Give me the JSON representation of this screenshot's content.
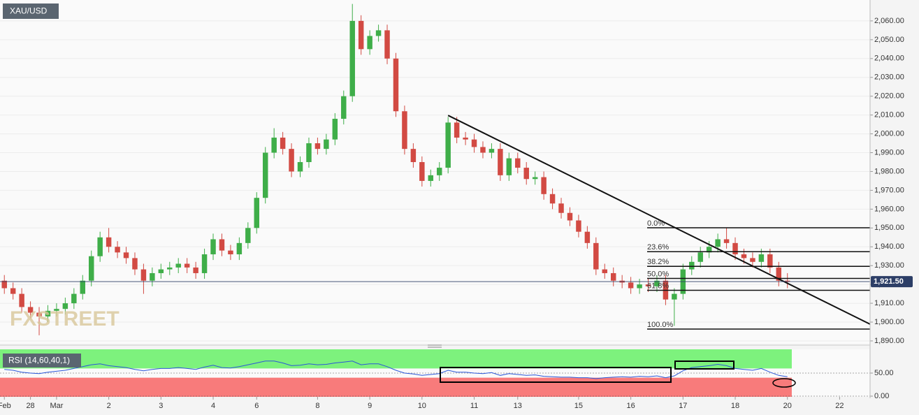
{
  "chart_data": [
    {
      "type": "candlestick",
      "title": "XAU/USD",
      "watermark": "FXSTREET",
      "up_color": "#3fae49",
      "down_color": "#d24a43",
      "open": [
        1922,
        1918,
        1915,
        1908,
        1905,
        1903,
        1906,
        1907,
        1910,
        1915,
        1922,
        1935,
        1945,
        1940,
        1937,
        1934,
        1928,
        1922,
        1926,
        1928,
        1929,
        1931,
        1929,
        1926,
        1936,
        1944,
        1938,
        1936,
        1942,
        1950,
        1966,
        1990,
        1998,
        1992,
        1980,
        1985,
        1995,
        1992,
        1997,
        2008,
        2020,
        2060,
        2045,
        2052,
        2055,
        2040,
        2012,
        1992,
        1985,
        1975,
        1978,
        1982,
        2006,
        1998,
        1997,
        1993,
        1990,
        1992,
        1978,
        1987,
        1982,
        1976,
        1977,
        1968,
        1963,
        1958,
        1954,
        1948,
        1942,
        1928,
        1926,
        1922,
        1921,
        1918,
        1920,
        1919,
        1922,
        1912,
        1915,
        1928,
        1932,
        1937,
        1940,
        1944,
        1942,
        1936,
        1934,
        1932,
        1936,
        1929,
        1922,
        null,
        null,
        null,
        null,
        null,
        null,
        null,
        null,
        null
      ],
      "high": [
        1925,
        1921,
        1918,
        1911,
        1908,
        1909,
        1910,
        1913,
        1918,
        1925,
        1938,
        1948,
        1950,
        1943,
        1940,
        1937,
        1931,
        1929,
        1931,
        1932,
        1934,
        1934,
        1932,
        1939,
        1947,
        1947,
        1941,
        1945,
        1953,
        1969,
        1993,
        2003,
        2001,
        1995,
        1988,
        1998,
        1998,
        2000,
        2011,
        2023,
        2069,
        2063,
        2055,
        2058,
        2058,
        2043,
        2015,
        1995,
        1988,
        1981,
        1985,
        2009,
        2009,
        2001,
        2000,
        1996,
        1995,
        1995,
        1990,
        1990,
        1985,
        1980,
        1980,
        1971,
        1966,
        1961,
        1957,
        1951,
        1945,
        1931,
        1929,
        1925,
        1924,
        1923,
        1923,
        1925,
        1925,
        1918,
        1931,
        1935,
        1940,
        1943,
        1947,
        1950,
        1945,
        1939,
        1937,
        1939,
        1939,
        1932,
        1926,
        null,
        null,
        null,
        null,
        null,
        null,
        null,
        null,
        null
      ],
      "low": [
        1915,
        1912,
        1905,
        1902,
        1893,
        1900,
        1903,
        1904,
        1907,
        1912,
        1919,
        1932,
        1937,
        1934,
        1931,
        1925,
        1915,
        1919,
        1923,
        1925,
        1926,
        1926,
        1923,
        1923,
        1933,
        1935,
        1933,
        1933,
        1939,
        1947,
        1963,
        1987,
        1989,
        1977,
        1977,
        1982,
        1989,
        1989,
        1994,
        2005,
        2017,
        2042,
        2042,
        2049,
        2037,
        2009,
        1989,
        1982,
        1972,
        1972,
        1975,
        1979,
        1995,
        1994,
        1990,
        1987,
        1987,
        1975,
        1975,
        1979,
        1973,
        1973,
        1965,
        1960,
        1955,
        1951,
        1945,
        1939,
        1925,
        1923,
        1919,
        1918,
        1915,
        1915,
        1916,
        1916,
        1909,
        1898,
        1912,
        1925,
        1929,
        1934,
        1937,
        1939,
        1933,
        1931,
        1929,
        1929,
        1926,
        1919,
        1918,
        null,
        null,
        null,
        null,
        null,
        null,
        null,
        null,
        null
      ],
      "close": [
        1918,
        1915,
        1908,
        1905,
        1903,
        1906,
        1907,
        1910,
        1915,
        1922,
        1935,
        1945,
        1940,
        1937,
        1934,
        1928,
        1922,
        1926,
        1928,
        1929,
        1931,
        1929,
        1926,
        1936,
        1944,
        1938,
        1936,
        1942,
        1950,
        1966,
        1990,
        1998,
        1992,
        1980,
        1985,
        1995,
        1992,
        1997,
        2008,
        2020,
        2060,
        2045,
        2052,
        2055,
        2040,
        2012,
        1992,
        1985,
        1975,
        1978,
        1982,
        2006,
        1998,
        1997,
        1993,
        1990,
        1992,
        1978,
        1987,
        1982,
        1976,
        1977,
        1968,
        1963,
        1958,
        1954,
        1948,
        1942,
        1928,
        1926,
        1922,
        1921,
        1918,
        1920,
        1919,
        1922,
        1912,
        1915,
        1928,
        1932,
        1937,
        1940,
        1944,
        1942,
        1936,
        1934,
        1932,
        1936,
        1929,
        1922,
        1921.5,
        null,
        null,
        null,
        null,
        null,
        null,
        null,
        null,
        null
      ],
      "ylim": [
        1888.5,
        2071.1
      ],
      "yticks": [
        {
          "value": 2060,
          "label": "2,060.00"
        },
        {
          "value": 2050,
          "label": "2,050.00"
        },
        {
          "value": 2040,
          "label": "2,040.00"
        },
        {
          "value": 2030,
          "label": "2,030.00"
        },
        {
          "value": 2020,
          "label": "2,020.00"
        },
        {
          "value": 2010,
          "label": "2,010.00"
        },
        {
          "value": 2000,
          "label": "2,000.00"
        },
        {
          "value": 1990,
          "label": "1,990.00"
        },
        {
          "value": 1980,
          "label": "1,980.00"
        },
        {
          "value": 1970,
          "label": "1,970.00"
        },
        {
          "value": 1960,
          "label": "1,960.00"
        },
        {
          "value": 1950,
          "label": "1,950.00"
        },
        {
          "value": 1940,
          "label": "1,940.00"
        },
        {
          "value": 1930,
          "label": "1,930.00"
        },
        {
          "value": 1920,
          "label": "1,920.00"
        },
        {
          "value": 1910,
          "label": "1,910.00"
        },
        {
          "value": 1900,
          "label": "1,900.00"
        },
        {
          "value": 1890,
          "label": "1,890.00"
        }
      ],
      "last_price": {
        "value": 1921.5,
        "label": "1,921.50"
      },
      "fib_levels": [
        {
          "label": "0.0%",
          "price": 1950.1
        },
        {
          "label": "23.6%",
          "price": 1937.4
        },
        {
          "label": "38.2%",
          "price": 1929.6
        },
        {
          "label": "50.0%",
          "price": 1923.2
        },
        {
          "label": "61.8%",
          "price": 1916.9
        },
        {
          "label": "100.0%",
          "price": 1896.3
        }
      ],
      "trendline": [
        2009.8,
        1898.9
      ]
    },
    {
      "type": "line",
      "title": "RSI (14,60,40,1)",
      "upper": 60,
      "lower": 40,
      "upper_color": "#7df27d",
      "lower_color": "#f87b7b",
      "categories": [
        "Feb",
        null,
        null,
        "28",
        null,
        null,
        "Mar",
        null,
        null,
        null,
        null,
        null,
        "2",
        null,
        null,
        null,
        null,
        null,
        "3",
        null,
        null,
        null,
        null,
        null,
        "4",
        null,
        null,
        null,
        null,
        "6",
        null,
        null,
        null,
        null,
        null,
        null,
        "8",
        null,
        null,
        null,
        null,
        null,
        "9",
        null,
        null,
        null,
        null,
        null,
        "10",
        null,
        null,
        null,
        null,
        null,
        "11",
        null,
        null,
        null,
        null,
        "13",
        null,
        null,
        null,
        null,
        null,
        null,
        "15",
        null,
        null,
        null,
        null,
        null,
        "16",
        null,
        null,
        null,
        null,
        null,
        "17",
        null,
        null,
        null,
        null,
        null,
        "18",
        null,
        null,
        null,
        null,
        null,
        "20",
        null,
        null,
        null,
        null,
        null,
        "22",
        null,
        null,
        null
      ],
      "series": [
        {
          "color": "#2b57d8",
          "values": [
            58,
            56,
            52,
            50,
            49,
            52,
            54,
            56,
            60,
            64,
            68,
            70,
            66,
            64,
            62,
            58,
            55,
            58,
            60,
            60,
            62,
            60,
            58,
            63,
            67,
            62,
            61,
            64,
            68,
            72,
            76,
            76,
            72,
            66,
            67,
            70,
            68,
            69,
            72,
            74,
            76,
            68,
            70,
            70,
            64,
            56,
            50,
            48,
            45,
            47,
            49,
            56,
            52,
            52,
            50,
            49,
            51,
            45,
            49,
            47,
            45,
            46,
            43,
            42,
            41,
            41,
            40,
            40,
            38,
            40,
            41,
            42,
            41,
            43,
            42,
            44,
            40,
            44,
            55,
            62,
            64,
            66,
            69,
            66,
            60,
            58,
            56,
            60,
            52,
            45,
            42,
            null,
            null,
            null,
            null,
            null,
            null,
            null,
            null,
            null
          ]
        }
      ],
      "ylim": [
        -1.5,
        101.5
      ],
      "yticks": [
        {
          "value": 50,
          "label": "50.00"
        },
        {
          "value": 0,
          "label": "0.00"
        }
      ]
    }
  ]
}
